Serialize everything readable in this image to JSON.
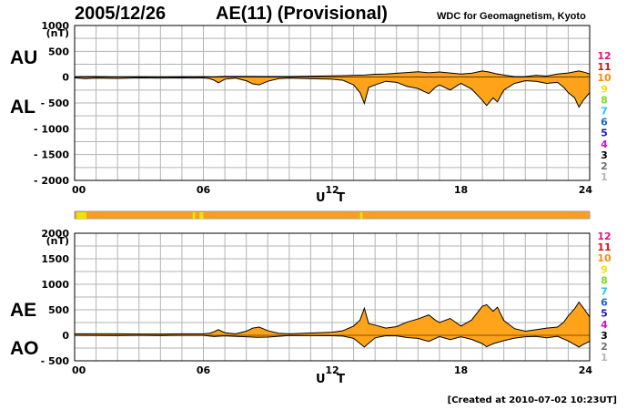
{
  "header": {
    "date": "2005/12/26",
    "title": "AE(11) (Provisional)",
    "source": "WDC for Geomagnetism, Kyoto"
  },
  "footer": {
    "created": "[Created at 2010-07-02 10:23UT]"
  },
  "colors": {
    "fill": "#ffa31a",
    "line": "#000000",
    "grid": "#b3b3b3"
  },
  "legend": {
    "items": [
      {
        "label": "12",
        "color": "#e0147a"
      },
      {
        "label": "11",
        "color": "#dc1414"
      },
      {
        "label": "10",
        "color": "#ff8c00"
      },
      {
        "label": "9",
        "color": "#e6e600"
      },
      {
        "label": "8",
        "color": "#7ddc1f"
      },
      {
        "label": "7",
        "color": "#1ec8f0"
      },
      {
        "label": "6",
        "color": "#1464dc"
      },
      {
        "label": "5",
        "color": "#1e1eb4"
      },
      {
        "label": "4",
        "color": "#c814c8"
      },
      {
        "label": "3",
        "color": "#000000"
      },
      {
        "label": "2",
        "color": "#707070"
      },
      {
        "label": "1",
        "color": "#b4b4b4"
      }
    ]
  },
  "status_bar": {
    "base_color": "#ff9e18",
    "marks": [
      {
        "from": 0.1,
        "to": 0.55,
        "color": "#e6e600"
      },
      {
        "from": 5.5,
        "to": 5.62,
        "color": "#e6e600"
      },
      {
        "from": 5.82,
        "to": 6.0,
        "color": "#e6e600"
      },
      {
        "from": 13.3,
        "to": 13.42,
        "color": "#e6e600"
      }
    ]
  },
  "chart_data": [
    {
      "type": "area",
      "title": "AU / AL",
      "series_labels": {
        "upper": "AU",
        "lower": "AL"
      },
      "xlabel": "U T",
      "ylabel_unit": "(nT)",
      "xlim": [
        0,
        24
      ],
      "ylim": [
        -2000,
        1000
      ],
      "xticks": [
        0,
        6,
        12,
        18,
        24
      ],
      "xtick_labels": [
        "00",
        "06",
        "12",
        "18",
        "24"
      ],
      "yticks": [
        1000,
        500,
        0,
        -500,
        -1000,
        -1500,
        -2000
      ],
      "ytick_labels": [
        "1000",
        "500",
        "0",
        "- 500",
        "- 1000",
        "- 1500",
        "- 2000"
      ],
      "grid": true,
      "upper": [
        [
          0,
          10
        ],
        [
          1,
          12
        ],
        [
          2,
          8
        ],
        [
          3,
          10
        ],
        [
          4,
          8
        ],
        [
          5,
          10
        ],
        [
          6,
          10
        ],
        [
          6.5,
          8
        ],
        [
          7,
          15
        ],
        [
          8,
          15
        ],
        [
          9,
          12
        ],
        [
          10,
          12
        ],
        [
          11,
          18
        ],
        [
          12,
          25
        ],
        [
          12.5,
          30
        ],
        [
          13,
          35
        ],
        [
          13.5,
          40
        ],
        [
          14,
          55
        ],
        [
          14.5,
          60
        ],
        [
          15,
          75
        ],
        [
          15.5,
          90
        ],
        [
          16,
          105
        ],
        [
          16.5,
          85
        ],
        [
          17,
          100
        ],
        [
          17.5,
          80
        ],
        [
          18,
          60
        ],
        [
          18.5,
          75
        ],
        [
          19,
          120
        ],
        [
          19.3,
          100
        ],
        [
          19.6,
          70
        ],
        [
          20,
          40
        ],
        [
          20.5,
          10
        ],
        [
          21,
          10
        ],
        [
          21.5,
          35
        ],
        [
          22,
          20
        ],
        [
          22.5,
          60
        ],
        [
          23,
          80
        ],
        [
          23.5,
          120
        ],
        [
          23.8,
          90
        ],
        [
          24,
          60
        ]
      ],
      "lower": [
        [
          0,
          -15
        ],
        [
          0.5,
          -30
        ],
        [
          1,
          -20
        ],
        [
          2,
          -25
        ],
        [
          3,
          -15
        ],
        [
          4,
          -20
        ],
        [
          5,
          -15
        ],
        [
          5.5,
          -20
        ],
        [
          6,
          -15
        ],
        [
          6.3,
          -30
        ],
        [
          6.5,
          -60
        ],
        [
          6.7,
          -110
        ],
        [
          7,
          -40
        ],
        [
          7.5,
          -20
        ],
        [
          8,
          -70
        ],
        [
          8.3,
          -130
        ],
        [
          8.6,
          -150
        ],
        [
          9,
          -80
        ],
        [
          9.5,
          -30
        ],
        [
          10,
          -20
        ],
        [
          11,
          -30
        ],
        [
          12,
          -40
        ],
        [
          12.5,
          -60
        ],
        [
          13,
          -150
        ],
        [
          13.3,
          -300
        ],
        [
          13.5,
          -510
        ],
        [
          13.7,
          -200
        ],
        [
          14,
          -150
        ],
        [
          14.5,
          -80
        ],
        [
          15,
          -100
        ],
        [
          15.5,
          -180
        ],
        [
          16,
          -220
        ],
        [
          16.5,
          -320
        ],
        [
          16.8,
          -200
        ],
        [
          17,
          -150
        ],
        [
          17.5,
          -250
        ],
        [
          18,
          -120
        ],
        [
          18.5,
          -230
        ],
        [
          19,
          -450
        ],
        [
          19.2,
          -550
        ],
        [
          19.5,
          -400
        ],
        [
          19.7,
          -480
        ],
        [
          20,
          -250
        ],
        [
          20.5,
          -120
        ],
        [
          21,
          -70
        ],
        [
          21.5,
          -80
        ],
        [
          22,
          -120
        ],
        [
          22.5,
          -100
        ],
        [
          22.8,
          -200
        ],
        [
          23,
          -300
        ],
        [
          23.3,
          -400
        ],
        [
          23.5,
          -580
        ],
        [
          23.7,
          -450
        ],
        [
          24,
          -300
        ]
      ]
    },
    {
      "type": "area",
      "title": "AE / AO",
      "series_labels": {
        "upper": "AE",
        "lower": "AO"
      },
      "xlabel": "U T",
      "ylabel_unit": "(nT)",
      "xlim": [
        0,
        24
      ],
      "ylim": [
        -500,
        2000
      ],
      "xticks": [
        0,
        6,
        12,
        18,
        24
      ],
      "xtick_labels": [
        "00",
        "06",
        "12",
        "18",
        "24"
      ],
      "yticks": [
        2000,
        1500,
        1000,
        500,
        0,
        -500
      ],
      "ytick_labels": [
        "2000",
        "1500",
        "1000",
        "500",
        "0",
        "- 500"
      ],
      "grid": true,
      "upper": [
        [
          0,
          30
        ],
        [
          1,
          30
        ],
        [
          2,
          30
        ],
        [
          3,
          25
        ],
        [
          4,
          25
        ],
        [
          5,
          30
        ],
        [
          6,
          30
        ],
        [
          6.3,
          40
        ],
        [
          6.5,
          70
        ],
        [
          6.7,
          110
        ],
        [
          7,
          50
        ],
        [
          7.5,
          30
        ],
        [
          8,
          80
        ],
        [
          8.3,
          140
        ],
        [
          8.6,
          160
        ],
        [
          9,
          90
        ],
        [
          9.5,
          40
        ],
        [
          10,
          30
        ],
        [
          11,
          45
        ],
        [
          12,
          60
        ],
        [
          12.5,
          90
        ],
        [
          13,
          180
        ],
        [
          13.3,
          300
        ],
        [
          13.5,
          530
        ],
        [
          13.7,
          230
        ],
        [
          14,
          200
        ],
        [
          14.5,
          140
        ],
        [
          15,
          170
        ],
        [
          15.5,
          260
        ],
        [
          16,
          320
        ],
        [
          16.5,
          400
        ],
        [
          16.8,
          300
        ],
        [
          17,
          250
        ],
        [
          17.5,
          330
        ],
        [
          18,
          180
        ],
        [
          18.5,
          300
        ],
        [
          19,
          570
        ],
        [
          19.2,
          600
        ],
        [
          19.5,
          470
        ],
        [
          19.7,
          550
        ],
        [
          20,
          290
        ],
        [
          20.5,
          130
        ],
        [
          21,
          80
        ],
        [
          21.5,
          110
        ],
        [
          22,
          140
        ],
        [
          22.5,
          160
        ],
        [
          22.8,
          260
        ],
        [
          23,
          380
        ],
        [
          23.3,
          520
        ],
        [
          23.5,
          650
        ],
        [
          23.7,
          540
        ],
        [
          24,
          360
        ]
      ],
      "lower": [
        [
          0,
          -3
        ],
        [
          1,
          -5
        ],
        [
          2,
          -6
        ],
        [
          3,
          -3
        ],
        [
          4,
          -6
        ],
        [
          5,
          -3
        ],
        [
          6,
          -3
        ],
        [
          6.5,
          -25
        ],
        [
          7,
          -12
        ],
        [
          8,
          -30
        ],
        [
          8.5,
          -40
        ],
        [
          9,
          -35
        ],
        [
          10,
          -5
        ],
        [
          11,
          -6
        ],
        [
          12,
          -8
        ],
        [
          12.5,
          -15
        ],
        [
          13,
          -60
        ],
        [
          13.5,
          -230
        ],
        [
          14,
          -50
        ],
        [
          14.5,
          -10
        ],
        [
          15,
          -12
        ],
        [
          15.5,
          -45
        ],
        [
          16,
          -60
        ],
        [
          16.5,
          -120
        ],
        [
          17,
          -25
        ],
        [
          17.5,
          -85
        ],
        [
          18,
          -30
        ],
        [
          18.5,
          -80
        ],
        [
          19,
          -165
        ],
        [
          19.2,
          -225
        ],
        [
          19.5,
          -165
        ],
        [
          20,
          -105
        ],
        [
          20.5,
          -55
        ],
        [
          21,
          -30
        ],
        [
          21.5,
          -22
        ],
        [
          22,
          -50
        ],
        [
          22.5,
          -20
        ],
        [
          23,
          -110
        ],
        [
          23.5,
          -230
        ],
        [
          23.7,
          -180
        ],
        [
          24,
          -120
        ]
      ]
    }
  ]
}
